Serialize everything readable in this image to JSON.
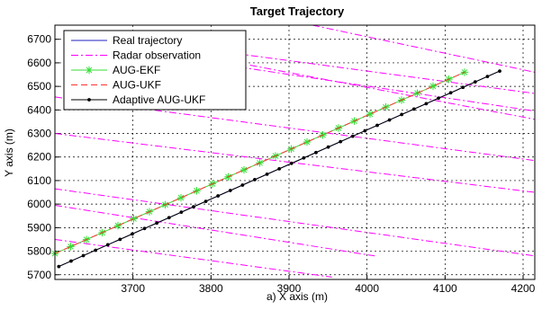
{
  "chart_data": {
    "type": "line",
    "title": "Target Trajectory",
    "xlabel": "a) X axis (m)",
    "ylabel": "Y axis (m)",
    "xlim": [
      3600,
      4215
    ],
    "ylim": [
      5680,
      6760
    ],
    "xticks": [
      3700,
      3800,
      3900,
      4000,
      4100,
      4200
    ],
    "yticks": [
      5700,
      5800,
      5900,
      6000,
      6100,
      6200,
      6300,
      6400,
      6500,
      6600,
      6700
    ],
    "grid": true,
    "legend_position": "top-left",
    "series": [
      {
        "name": "Real trajectory",
        "style": "solid",
        "color": "#1f1fbf",
        "marker": "none",
        "points": [
          [
            3605,
            5735
          ],
          [
            4170,
            6565
          ]
        ]
      },
      {
        "name": "Radar observation",
        "style": "dashdot",
        "color": "#ff00ff",
        "marker": "none",
        "segments": [
          [
            [
              3600,
              6300
            ],
            [
              4215,
              6050
            ]
          ],
          [
            [
              3600,
              6065
            ],
            [
              4215,
              5780
            ]
          ],
          [
            [
              3600,
              5850
            ],
            [
              3955,
              5690
            ]
          ],
          [
            [
              3600,
              6455
            ],
            [
              4215,
              6185
            ]
          ],
          [
            [
              3600,
              5995
            ],
            [
              4010,
              5780
            ]
          ],
          [
            [
              3930,
              6760
            ],
            [
              4215,
              6560
            ]
          ],
          [
            [
              3850,
              6590
            ],
            [
              4215,
              6360
            ]
          ],
          [
            [
              3650,
              6720
            ],
            [
              4215,
              6470
            ]
          ],
          [
            [
              3800,
              6600
            ],
            [
              4215,
              6395
            ]
          ]
        ]
      },
      {
        "name": "AUG-EKF",
        "style": "solid",
        "color": "#33dd33",
        "marker": "asterisk",
        "points": [
          [
            3600,
            5790
          ],
          [
            4125,
            6560
          ]
        ]
      },
      {
        "name": "AUG-UKF",
        "style": "dashed",
        "color": "#ff3333",
        "marker": "none",
        "points": [
          [
            3600,
            5790
          ],
          [
            4125,
            6560
          ]
        ]
      },
      {
        "name": "Adaptive AUG-UKF",
        "style": "solid",
        "color": "#000000",
        "marker": "dot",
        "points": [
          [
            3605,
            5735
          ],
          [
            4170,
            6565
          ]
        ]
      }
    ]
  }
}
